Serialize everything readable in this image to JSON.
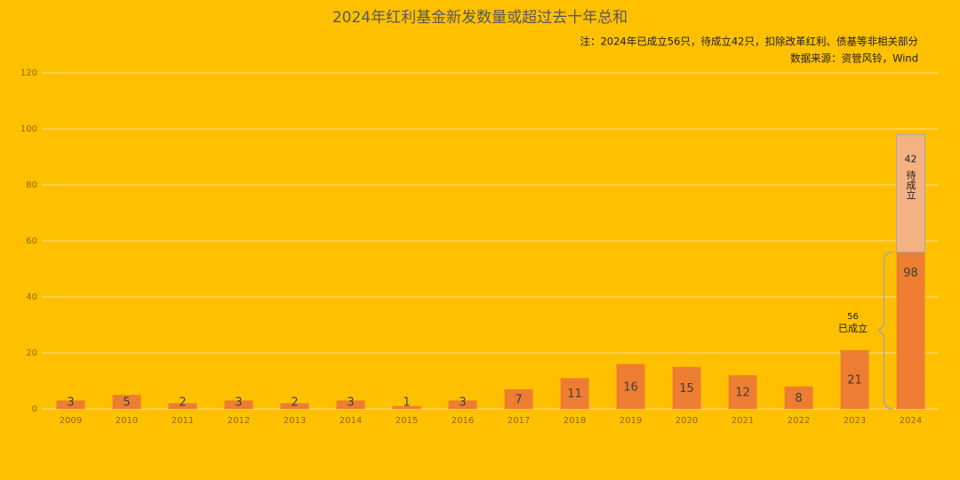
{
  "chart_data": {
    "type": "stacked_bar",
    "title": "2024年红利基金新发数量或超过去十年总和",
    "note": "注：2024年已成立56只，待成立42只，扣除改革红利、债基等非相关部分",
    "source": "数据来源：资管风铃，Wind",
    "categories": [
      "2009",
      "2010",
      "2011",
      "2012",
      "2013",
      "2014",
      "2015",
      "2016",
      "2017",
      "2018",
      "2019",
      "2020",
      "2021",
      "2022",
      "2023",
      "2024"
    ],
    "series": [
      {
        "name": "已成立",
        "color": "#ED7D31",
        "values": [
          3,
          5,
          2,
          3,
          2,
          3,
          1,
          3,
          7,
          11,
          16,
          15,
          12,
          8,
          21,
          56
        ]
      },
      {
        "name": "待成立",
        "color": "#F4B183",
        "values": [
          null,
          null,
          null,
          null,
          null,
          null,
          null,
          null,
          null,
          null,
          null,
          null,
          null,
          null,
          null,
          42
        ]
      }
    ],
    "total_label": "98",
    "ylim": [
      0,
      120
    ],
    "yticks": [
      0,
      20,
      40,
      60,
      80,
      100,
      120
    ],
    "grid": true
  }
}
